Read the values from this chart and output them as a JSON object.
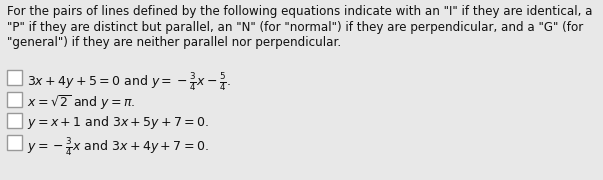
{
  "background_color": "#e8e8e8",
  "header_lines": [
    "For the pairs of lines defined by the following equations indicate with an \"I\" if they are identical, a",
    "\"P\" if they are distinct but parallel, an \"N\" (for \"normal\") if they are perpendicular, and a \"G\" (for",
    "\"general\") if they are neither parallel nor perpendicular."
  ],
  "rows": [
    "$3x+4y+5=0$ and $y=-\\frac{3}{4}x-\\frac{5}{4}$.",
    "$x=\\sqrt{2}$ and $y=\\pi$.",
    "$y=x+1$ and $3x+5y+7=0$.",
    "$y=-\\frac{3}{4}x$ and $3x+4y+7=0$."
  ],
  "header_fontsize": 8.6,
  "row_fontsize": 9.0,
  "box_edge_color": "#999999",
  "box_face_color": "#ffffff",
  "text_color": "#111111",
  "fig_width": 6.03,
  "fig_height": 1.8,
  "dpi": 100
}
